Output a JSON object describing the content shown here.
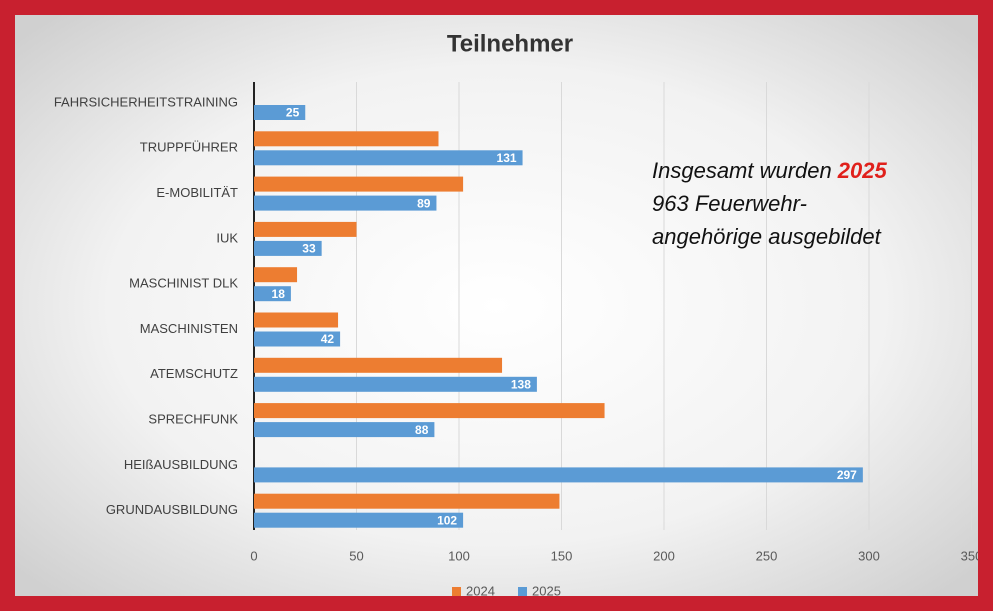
{
  "chart_data": {
    "type": "barh",
    "title": "Teilnehmer",
    "categories": [
      "FAHRSICHERHEITSTRAINING",
      "TRUPPFÜHRER",
      "E-MOBILITÄT",
      "IUK",
      "MASCHINIST DLK",
      "MASCHINISTEN",
      "ATEMSCHUTZ",
      "SPRECHFUNK",
      "HEIßAUSBILDUNG",
      "GRUNDAUSBILDUNG"
    ],
    "series": [
      {
        "name": "2024",
        "color": "#ed7d31",
        "values": [
          null,
          90,
          102,
          50,
          21,
          41,
          121,
          171,
          null,
          149
        ]
      },
      {
        "name": "2025",
        "color": "#5b9bd5",
        "values": [
          25,
          131,
          89,
          33,
          18,
          42,
          138,
          88,
          297,
          102
        ]
      }
    ],
    "xlim": [
      0,
      350
    ],
    "xticks": [
      0,
      50,
      100,
      150,
      200,
      250,
      300,
      350
    ],
    "grid": true,
    "legend": "bottom",
    "annotation": {
      "line1": "Insgesamt wurden",
      "highlight": "2025",
      "line2": "963 Feuerwehr-",
      "line3": "angehörige ausgebildet"
    }
  }
}
